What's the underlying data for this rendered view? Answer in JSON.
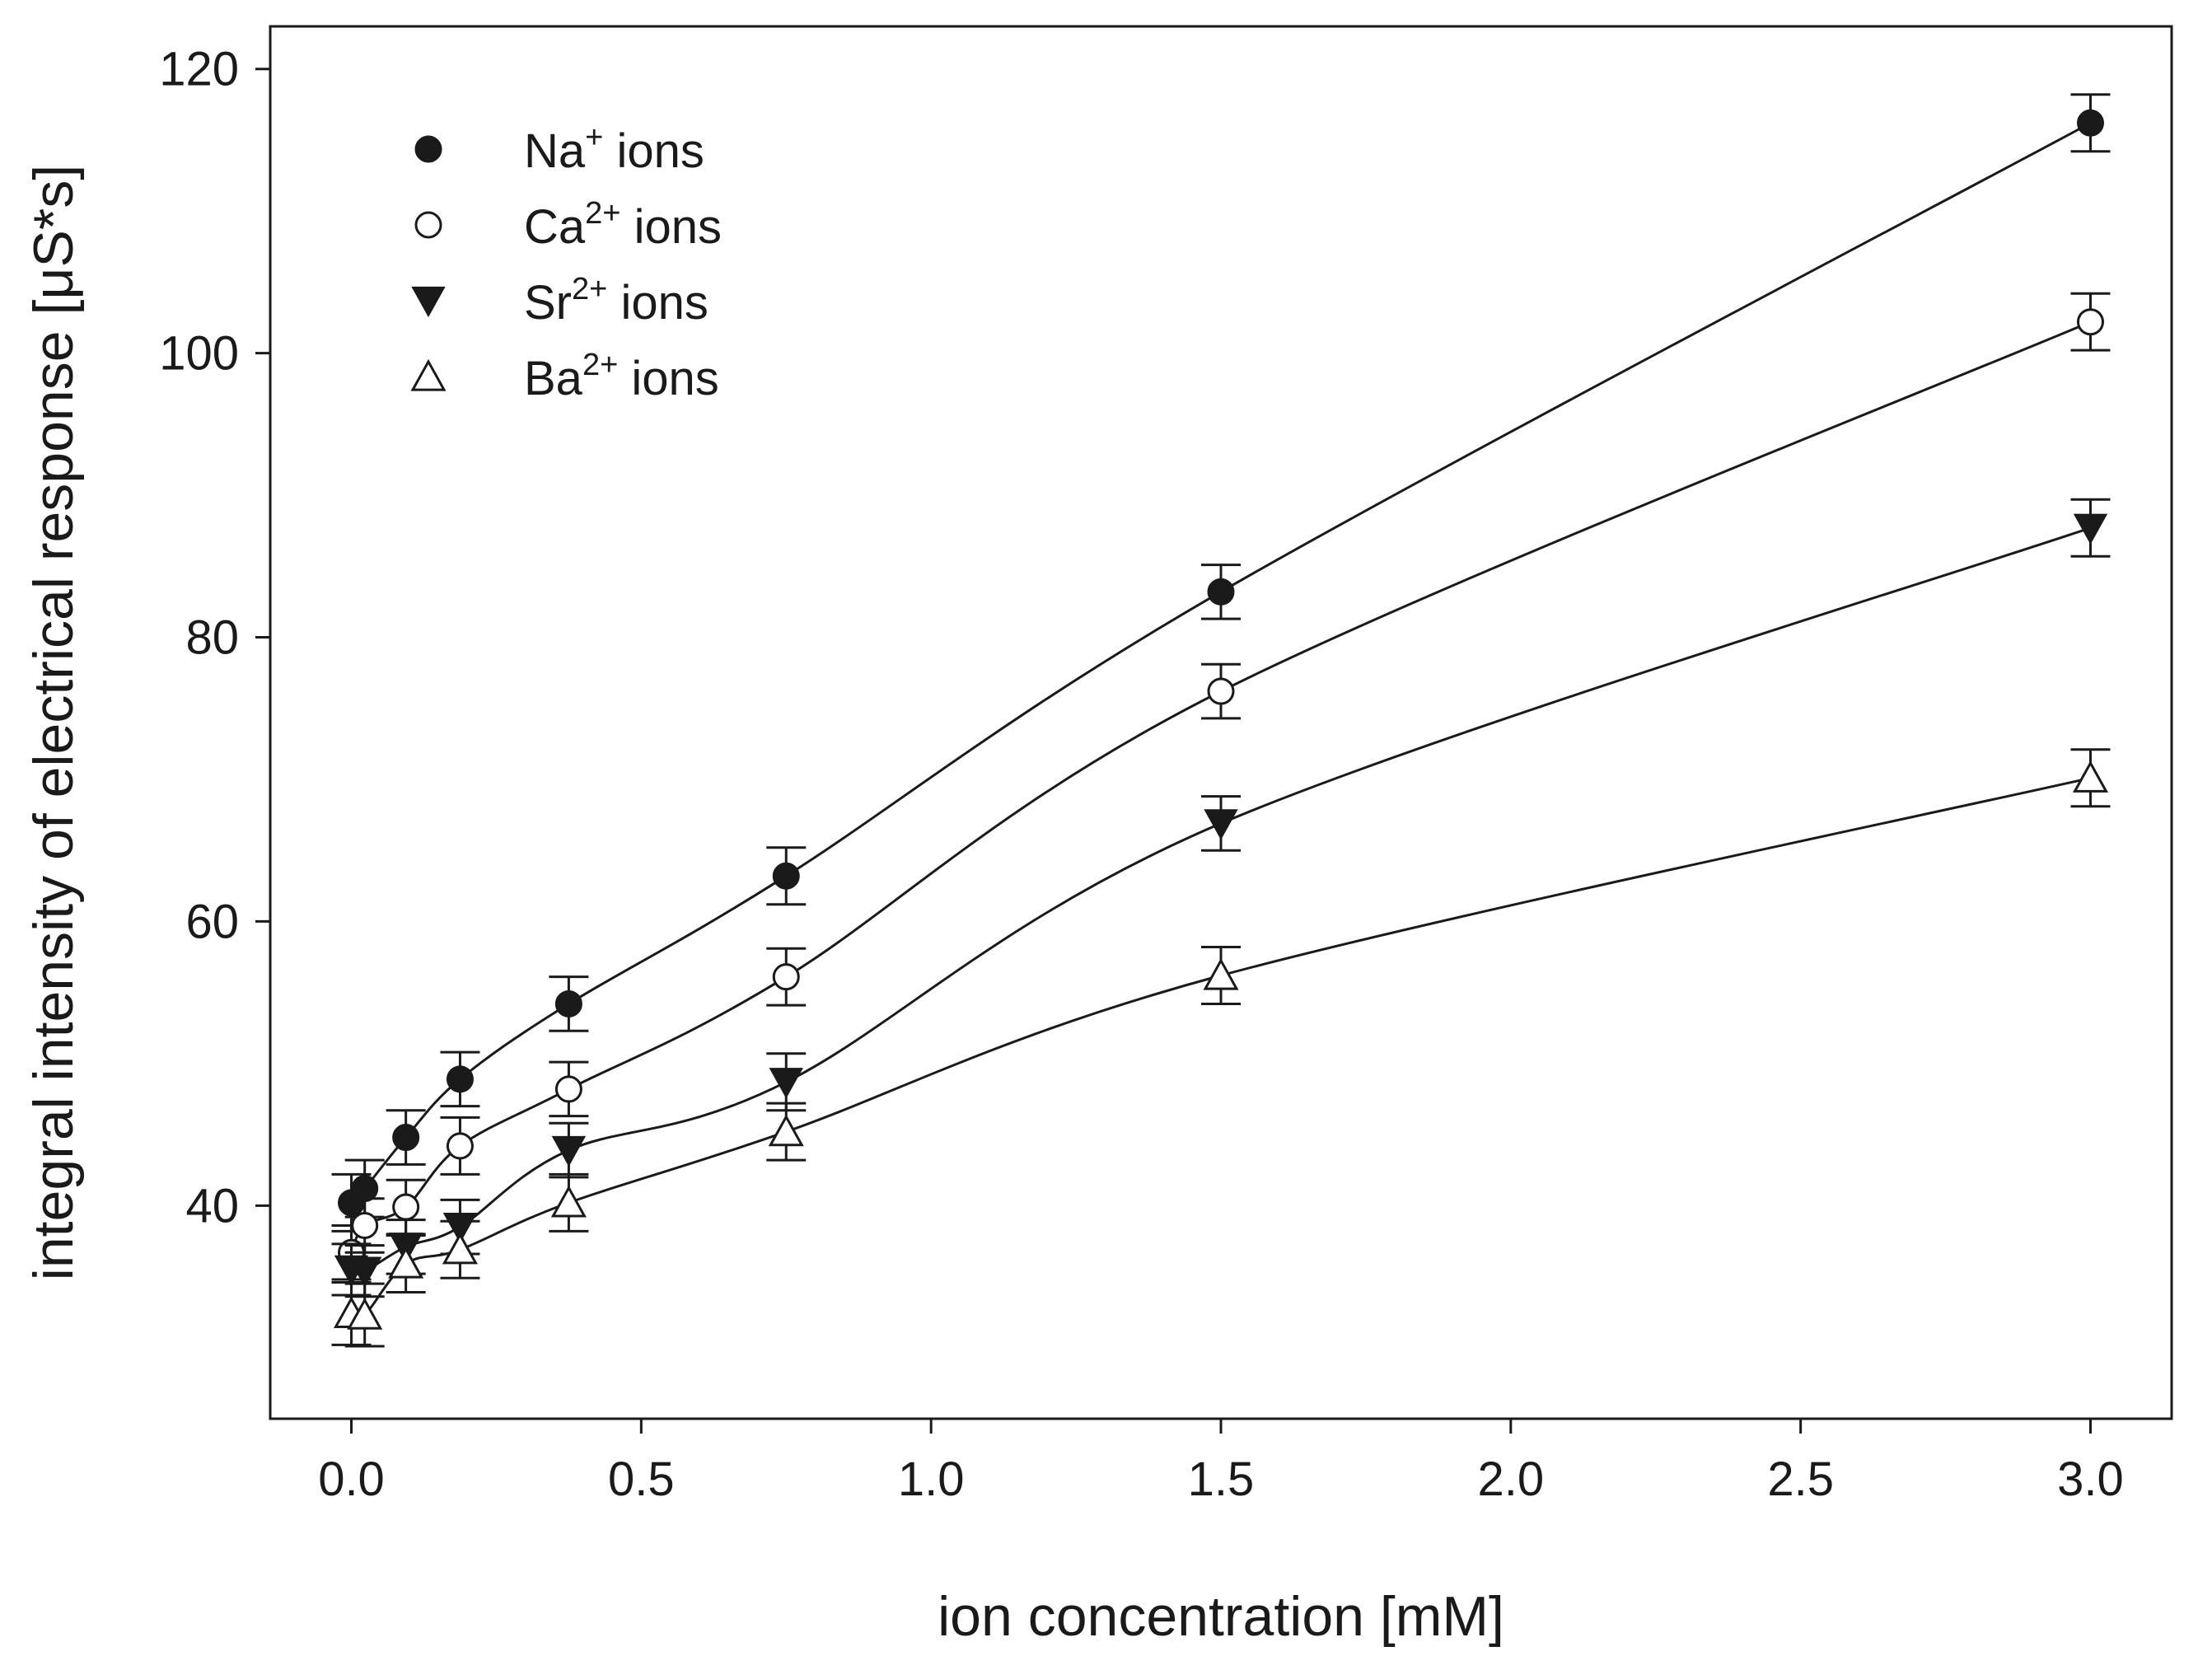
{
  "chart_data": {
    "type": "scatter",
    "title": "",
    "xlabel": "ion concentration [mM]",
    "ylabel": "integral intensity of electrical response [μS*s]",
    "xlim": [
      -0.14,
      3.14
    ],
    "ylim": [
      25,
      123
    ],
    "xticks": [
      0.0,
      0.5,
      1.0,
      1.5,
      2.0,
      2.5,
      3.0
    ],
    "xtick_labels": [
      "0.0",
      "0.5",
      "1.0",
      "1.5",
      "2.0",
      "2.5",
      "3.0"
    ],
    "yticks": [
      40,
      60,
      80,
      100,
      120
    ],
    "ytick_labels": [
      "40",
      "60",
      "80",
      "100",
      "120"
    ],
    "grid": false,
    "legend_position": "top-left",
    "error_bars": true,
    "fitted_curves": true,
    "x": [
      0.0,
      0.023,
      0.094,
      0.1875,
      0.375,
      0.75,
      1.5,
      3.0
    ],
    "series": [
      {
        "name": "Na",
        "sup": "+",
        "suffix": " ions",
        "marker": "circle-filled",
        "values": [
          40.2,
          41.2,
          44.8,
          48.9,
          54.2,
          63.2,
          83.2,
          116.2
        ],
        "errors": [
          2.0,
          2.0,
          1.9,
          1.9,
          1.9,
          2.0,
          1.9,
          2.0
        ]
      },
      {
        "name": "Ca",
        "sup": "2+",
        "suffix": " ions",
        "marker": "circle-open",
        "values": [
          36.7,
          38.6,
          39.9,
          44.2,
          48.2,
          56.1,
          76.2,
          102.2
        ],
        "errors": [
          1.9,
          1.9,
          1.9,
          2.0,
          1.9,
          2.0,
          1.9,
          2.0
        ]
      },
      {
        "name": "Sr",
        "sup": "2+",
        "suffix": " ions",
        "marker": "triangle-down-filled",
        "values": [
          35.5,
          35.4,
          37.1,
          38.5,
          43.9,
          48.7,
          66.9,
          87.7
        ],
        "errors": [
          1.8,
          1.8,
          1.9,
          1.9,
          1.9,
          2.0,
          1.9,
          2.0
        ]
      },
      {
        "name": "Ba",
        "sup": "2+",
        "suffix": " ions",
        "marker": "triangle-up-open",
        "values": [
          32.4,
          32.3,
          35.9,
          36.9,
          40.2,
          45.2,
          56.2,
          70.1
        ],
        "errors": [
          2.2,
          2.2,
          2.0,
          2.0,
          2.0,
          2.0,
          2.0,
          2.0
        ]
      }
    ]
  }
}
